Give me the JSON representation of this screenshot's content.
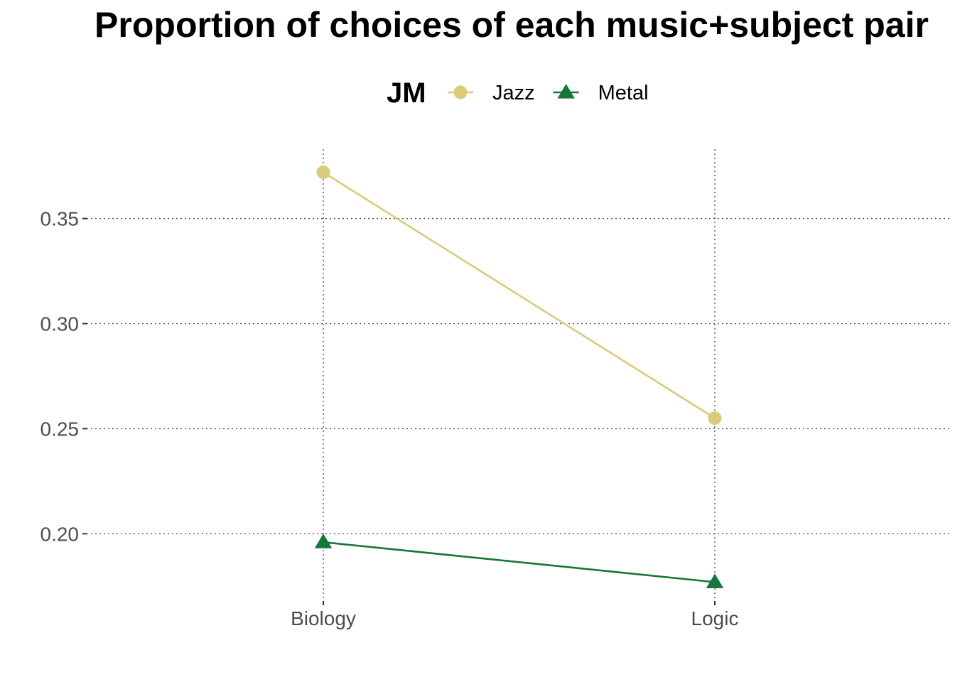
{
  "chart_data": {
    "type": "line",
    "title": "Proportion of choices of each music+subject pair",
    "xlabel": "",
    "ylabel": "",
    "categories": [
      "Biology",
      "Logic"
    ],
    "ylim": [
      0.168,
      0.383
    ],
    "y_ticks": [
      0.2,
      0.25,
      0.3,
      0.35
    ],
    "y_tick_labels": [
      "0.20",
      "0.25",
      "0.30",
      "0.35"
    ],
    "legend": {
      "title": "JM",
      "placement": "top"
    },
    "grid": true,
    "series": [
      {
        "name": "Jazz",
        "values": [
          0.372,
          0.255
        ],
        "color": "#d9cb78",
        "marker": "circle"
      },
      {
        "name": "Metal",
        "values": [
          0.196,
          0.177
        ],
        "color": "#17763a",
        "marker": "triangle"
      }
    ]
  }
}
